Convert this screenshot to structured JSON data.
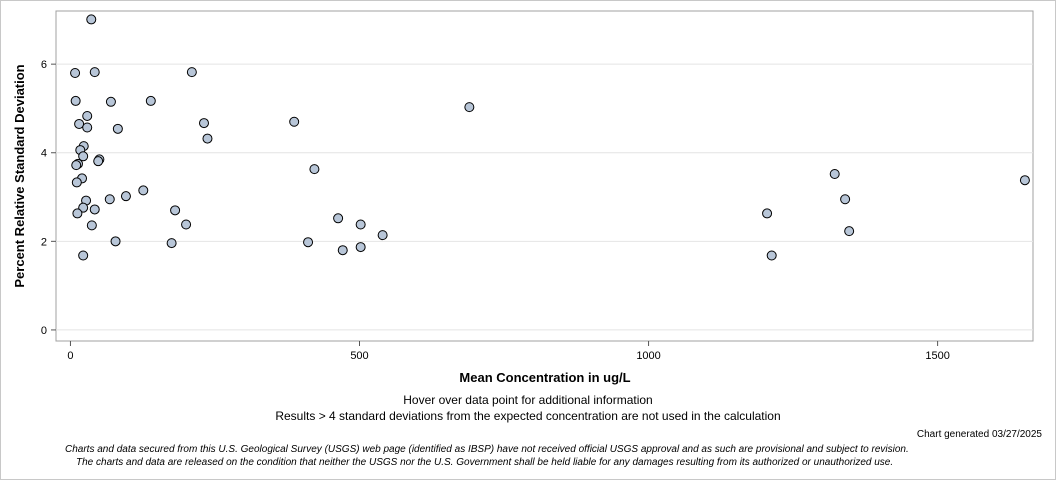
{
  "chart_data": {
    "type": "scatter",
    "title": "",
    "xlabel": "Mean Concentration in ug/L",
    "ylabel": "Percent Relative Standard Deviation",
    "xlim": [
      -25,
      1665
    ],
    "ylim": [
      -0.25,
      7.2
    ],
    "x_ticks": [
      0,
      500,
      1000,
      1500
    ],
    "y_ticks": [
      0,
      2,
      4,
      6
    ],
    "grid": "horizontal",
    "marker_color": "#b8c6d8",
    "marker_edge": "#000000",
    "points": [
      {
        "x": 36,
        "y": 7.01
      },
      {
        "x": 8,
        "y": 5.8
      },
      {
        "x": 42,
        "y": 5.82
      },
      {
        "x": 210,
        "y": 5.82
      },
      {
        "x": 9,
        "y": 5.17
      },
      {
        "x": 70,
        "y": 5.15
      },
      {
        "x": 139,
        "y": 5.17
      },
      {
        "x": 690,
        "y": 5.03
      },
      {
        "x": 29,
        "y": 4.83
      },
      {
        "x": 15,
        "y": 4.65
      },
      {
        "x": 29,
        "y": 4.57
      },
      {
        "x": 82,
        "y": 4.54
      },
      {
        "x": 231,
        "y": 4.67
      },
      {
        "x": 387,
        "y": 4.7
      },
      {
        "x": 237,
        "y": 4.32
      },
      {
        "x": 23,
        "y": 4.15
      },
      {
        "x": 17,
        "y": 4.06
      },
      {
        "x": 22,
        "y": 3.92
      },
      {
        "x": 50,
        "y": 3.85
      },
      {
        "x": 48,
        "y": 3.81
      },
      {
        "x": 13,
        "y": 3.75
      },
      {
        "x": 10,
        "y": 3.72
      },
      {
        "x": 422,
        "y": 3.63
      },
      {
        "x": 1322,
        "y": 3.52
      },
      {
        "x": 1651,
        "y": 3.38
      },
      {
        "x": 20,
        "y": 3.42
      },
      {
        "x": 11,
        "y": 3.33
      },
      {
        "x": 126,
        "y": 3.15
      },
      {
        "x": 96,
        "y": 3.02
      },
      {
        "x": 68,
        "y": 2.95
      },
      {
        "x": 27,
        "y": 2.92
      },
      {
        "x": 1340,
        "y": 2.95
      },
      {
        "x": 22,
        "y": 2.76
      },
      {
        "x": 42,
        "y": 2.72
      },
      {
        "x": 181,
        "y": 2.7
      },
      {
        "x": 12,
        "y": 2.63
      },
      {
        "x": 1205,
        "y": 2.63
      },
      {
        "x": 463,
        "y": 2.52
      },
      {
        "x": 502,
        "y": 2.38
      },
      {
        "x": 200,
        "y": 2.38
      },
      {
        "x": 37,
        "y": 2.36
      },
      {
        "x": 1347,
        "y": 2.23
      },
      {
        "x": 540,
        "y": 2.14
      },
      {
        "x": 78,
        "y": 2.0
      },
      {
        "x": 411,
        "y": 1.98
      },
      {
        "x": 175,
        "y": 1.96
      },
      {
        "x": 502,
        "y": 1.87
      },
      {
        "x": 471,
        "y": 1.8
      },
      {
        "x": 22,
        "y": 1.68
      },
      {
        "x": 1213,
        "y": 1.68
      }
    ]
  },
  "captions": {
    "hover_note": "Hover over data point for additional information",
    "results_note": "Results > 4 standard deviations from the expected concentration are not used in the calculation",
    "generated": "Chart generated 03/27/2025",
    "disclaimer_line1": "Charts and data secured from this U.S. Geological Survey (USGS) web page (identified as IBSP) have not received official USGS approval and as such are provisional and subject to revision.",
    "disclaimer_line2": "The charts and data are released on the condition that neither the USGS nor the U.S. Government shall be held liable for any damages resulting from its authorized or unauthorized use."
  }
}
